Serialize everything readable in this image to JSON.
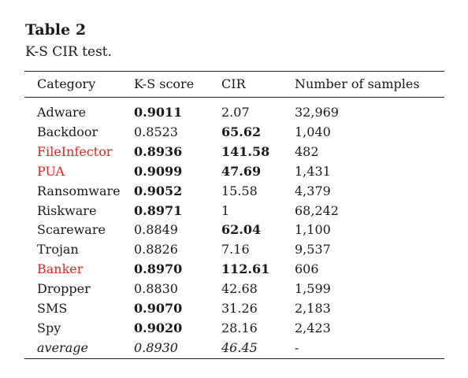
{
  "caption": {
    "title": "Table 2",
    "subtitle": "K-S CIR test."
  },
  "table": {
    "headers": [
      "Category",
      "K-S score",
      "CIR",
      "Number of samples"
    ],
    "rows": [
      {
        "category": "Adware",
        "ks": "0.9011",
        "cir": "2.07",
        "samples": "32,969",
        "ks_bold": true,
        "cir_bold": false,
        "highlight": false
      },
      {
        "category": "Backdoor",
        "ks": "0.8523",
        "cir": "65.62",
        "samples": "1,040",
        "ks_bold": false,
        "cir_bold": true,
        "highlight": false
      },
      {
        "category": "FileInfector",
        "ks": "0.8936",
        "cir": "141.58",
        "samples": "482",
        "ks_bold": true,
        "cir_bold": true,
        "highlight": true
      },
      {
        "category": "PUA",
        "ks": "0.9099",
        "cir": "47.69",
        "samples": "1,431",
        "ks_bold": true,
        "cir_bold": true,
        "highlight": true
      },
      {
        "category": "Ransomware",
        "ks": "0.9052",
        "cir": "15.58",
        "samples": "4,379",
        "ks_bold": true,
        "cir_bold": false,
        "highlight": false
      },
      {
        "category": "Riskware",
        "ks": "0.8971",
        "cir": "1",
        "samples": "68,242",
        "ks_bold": true,
        "cir_bold": false,
        "highlight": false
      },
      {
        "category": "Scareware",
        "ks": "0.8849",
        "cir": "62.04",
        "samples": "1,100",
        "ks_bold": false,
        "cir_bold": true,
        "highlight": false
      },
      {
        "category": "Trojan",
        "ks": "0.8826",
        "cir": "7.16",
        "samples": "9,537",
        "ks_bold": false,
        "cir_bold": false,
        "highlight": false
      },
      {
        "category": "Banker",
        "ks": "0.8970",
        "cir": "112.61",
        "samples": "606",
        "ks_bold": true,
        "cir_bold": true,
        "highlight": true
      },
      {
        "category": "Dropper",
        "ks": "0.8830",
        "cir": "42.68",
        "samples": "1,599",
        "ks_bold": false,
        "cir_bold": false,
        "highlight": false
      },
      {
        "category": "SMS",
        "ks": "0.9070",
        "cir": "31.26",
        "samples": "2,183",
        "ks_bold": true,
        "cir_bold": false,
        "highlight": false
      },
      {
        "category": "Spy",
        "ks": "0.9020",
        "cir": "28.16",
        "samples": "2,423",
        "ks_bold": true,
        "cir_bold": false,
        "highlight": false
      }
    ],
    "average": {
      "category": "average",
      "ks": "0.8930",
      "cir": "46.45",
      "samples": "-"
    }
  },
  "colors": {
    "highlight_text": "#e8221c",
    "text": "#1a1a1a",
    "rule": "#222222"
  }
}
